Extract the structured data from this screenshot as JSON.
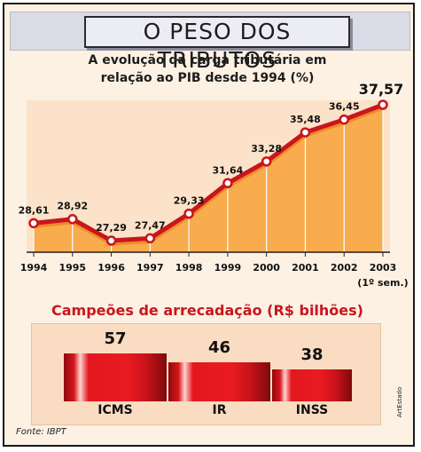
{
  "header": {
    "title": "O PESO DOS TRIBUTOS"
  },
  "chart_data": [
    {
      "type": "line",
      "title_line1": "A evolução da carga tributária em",
      "title_line2": "relação ao PIB desde 1994 (%)",
      "categories": [
        "1994",
        "1995",
        "1996",
        "1997",
        "1998",
        "1999",
        "2000",
        "2001",
        "2002",
        "2003"
      ],
      "category_note": "(1º sem.)",
      "values": [
        28.61,
        28.92,
        27.29,
        27.47,
        29.33,
        31.64,
        33.28,
        35.48,
        36.45,
        37.57
      ],
      "value_labels": [
        "28,61",
        "28,92",
        "27,29",
        "27,47",
        "29,33",
        "31,64",
        "33,28",
        "35,48",
        "36,45",
        "37,57"
      ],
      "colors": {
        "line": "#c8161d",
        "area": "#f7a640",
        "marker_fill": "#ffffff"
      }
    },
    {
      "type": "bar",
      "title": "Campeões de arrecadação (R$ bilhões)",
      "categories": [
        "ICMS",
        "IR",
        "INSS"
      ],
      "values": [
        57,
        46,
        38
      ],
      "colors": {
        "bar": "#e01b20",
        "title": "#c8161d"
      }
    }
  ],
  "footer": {
    "source": "Fonte: IBPT",
    "credit": "ArtEstado"
  }
}
